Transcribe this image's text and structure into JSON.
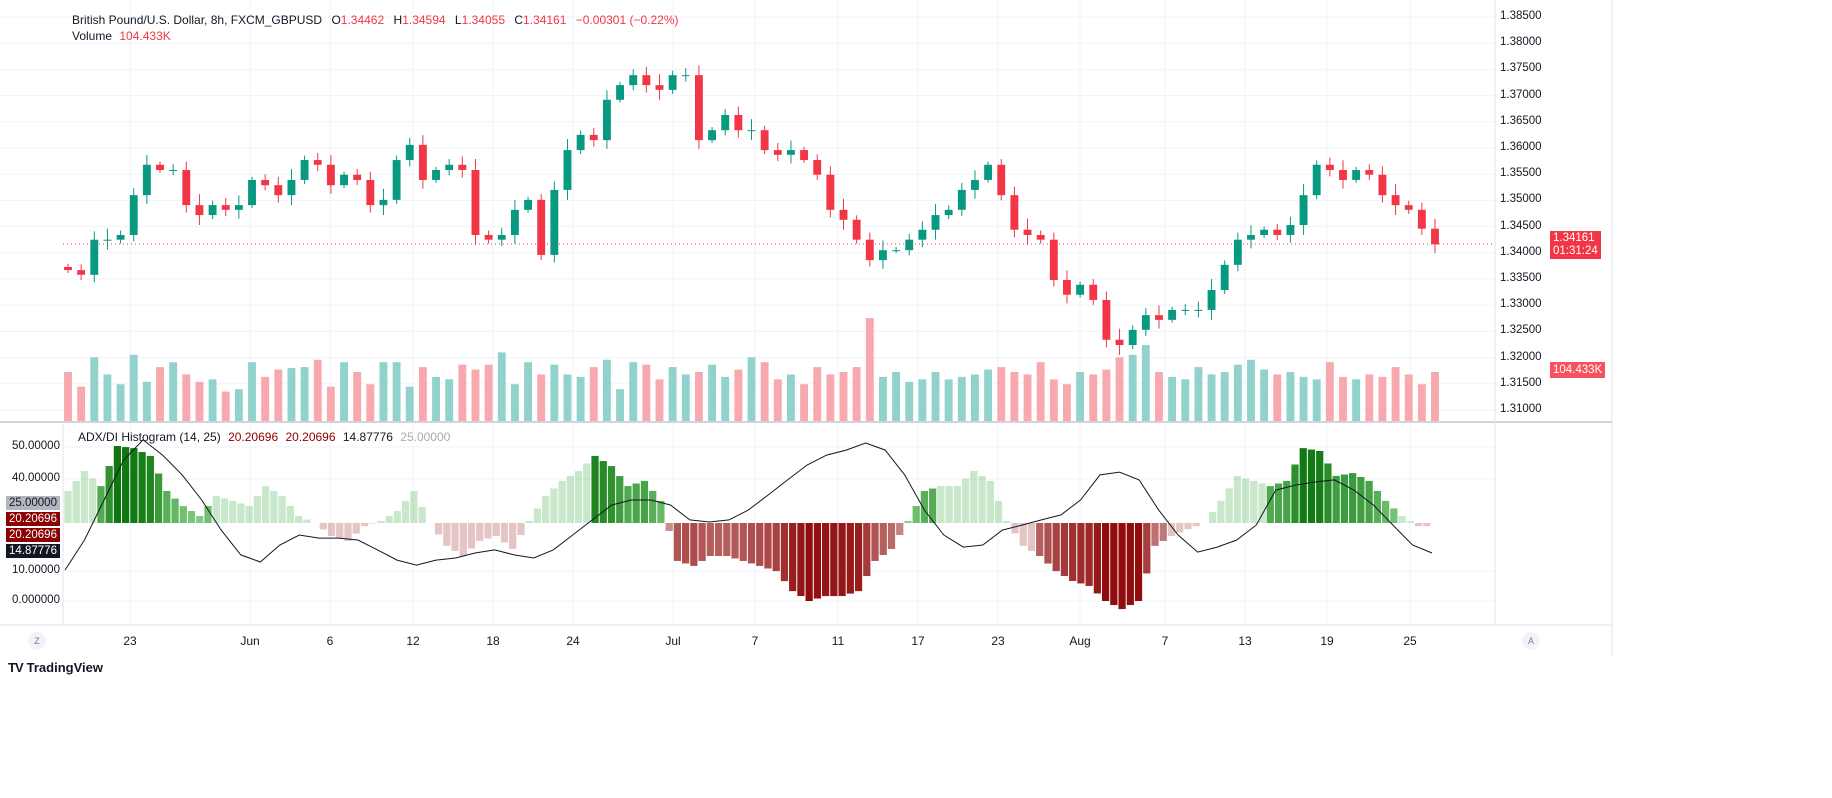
{
  "header": {
    "symbol": "British Pound/U.S. Dollar, 8h, FXCM_GBPUSD",
    "o_label": "O",
    "o": "1.34462",
    "h_label": "H",
    "h": "1.34594",
    "l_label": "L",
    "l": "1.34055",
    "c_label": "C",
    "c": "1.34161",
    "change": "−0.00301 (−0.22%)",
    "volume_label": "Volume",
    "volume": "104.433K"
  },
  "indicator": {
    "title": "ADX/DI Histogram (14, 25)",
    "v1": "20.20696",
    "v2": "20.20696",
    "v3": "14.87776",
    "v4": "25.00000"
  },
  "price_tags": {
    "last_price": "1.34161",
    "countdown": "01:31:24",
    "volume": "104.433K"
  },
  "indicator_tags": {
    "threshold": "25.00000",
    "di1": "20.20696",
    "di2": "20.20696",
    "adx": "14.87776"
  },
  "price_axis": [
    "1.38500",
    "1.38000",
    "1.37500",
    "1.37000",
    "1.36500",
    "1.36000",
    "1.35500",
    "1.35000",
    "1.34500",
    "1.34000",
    "1.33500",
    "1.33000",
    "1.32500",
    "1.32000",
    "1.31500",
    "1.31000"
  ],
  "indicator_axis": [
    "50.00000",
    "40.00000",
    "10.00000",
    "0.000000"
  ],
  "date_axis": [
    "23",
    "Jun",
    "6",
    "12",
    "18",
    "24",
    "Jul",
    "7",
    "11",
    "17",
    "23",
    "Aug",
    "7",
    "13",
    "19",
    "25"
  ],
  "buttons": {
    "timezone": "Z",
    "auto_scale": "A"
  },
  "branding": "TradingView",
  "colors": {
    "up": "#089981",
    "down": "#f23645",
    "vol_up": "#92d2cc",
    "vol_down": "#f7a9af"
  },
  "chart_data": {
    "type": "candlestick",
    "title": "British Pound/U.S. Dollar, 8h, FXCM_GBPUSD",
    "ylim": [
      1.31,
      1.385
    ],
    "closes": [
      1.3367,
      1.3358,
      1.3425,
      1.3425,
      1.3434,
      1.351,
      1.3568,
      1.3558,
      1.3558,
      1.3491,
      1.3472,
      1.3491,
      1.3482,
      1.3491,
      1.3539,
      1.3529,
      1.351,
      1.3539,
      1.3577,
      1.3568,
      1.3529,
      1.3549,
      1.3539,
      1.3491,
      1.3501,
      1.3577,
      1.3606,
      1.3539,
      1.3558,
      1.3568,
      1.3558,
      1.3434,
      1.3425,
      1.3434,
      1.3482,
      1.3501,
      1.3396,
      1.352,
      1.3596,
      1.3625,
      1.3615,
      1.3692,
      1.372,
      1.3739,
      1.372,
      1.3711,
      1.3739,
      1.3739,
      1.3615,
      1.3634,
      1.3663,
      1.3634,
      1.3634,
      1.3596,
      1.3587,
      1.3596,
      1.3577,
      1.3549,
      1.3482,
      1.3463,
      1.3425,
      1.3386,
      1.3405,
      1.3405,
      1.3425,
      1.3444,
      1.3472,
      1.3482,
      1.352,
      1.3539,
      1.3568,
      1.351,
      1.3444,
      1.3434,
      1.3425,
      1.3348,
      1.332,
      1.3339,
      1.331,
      1.3234,
      1.3224,
      1.3253,
      1.3281,
      1.3272,
      1.3291,
      1.3291,
      1.3291,
      1.3329,
      1.3377,
      1.3425,
      1.3434,
      1.3444,
      1.3434,
      1.3453,
      1.351,
      1.3568,
      1.3558,
      1.3539,
      1.3558,
      1.3549,
      1.351,
      1.3491,
      1.3482,
      1.3446,
      1.34161
    ],
    "volume_k": [
      100,
      70,
      130,
      95,
      75,
      135,
      80,
      110,
      120,
      95,
      80,
      85,
      60,
      65,
      120,
      90,
      105,
      108,
      110,
      125,
      70,
      120,
      100,
      75,
      120,
      120,
      70,
      110,
      90,
      85,
      115,
      105,
      115,
      140,
      75,
      120,
      95,
      115,
      95,
      90,
      110,
      125,
      65,
      120,
      115,
      85,
      110,
      95,
      100,
      115,
      90,
      105,
      130,
      120,
      85,
      95,
      75,
      110,
      95,
      100,
      110,
      210,
      90,
      100,
      80,
      85,
      100,
      85,
      90,
      95,
      105,
      110,
      100,
      95,
      120,
      85,
      75,
      100,
      95,
      105,
      130,
      135,
      155,
      100,
      90,
      85,
      110,
      95,
      100,
      115,
      125,
      105,
      95,
      100,
      90,
      85,
      120,
      90,
      85,
      95,
      90,
      110,
      95,
      75,
      100,
      95,
      104.433
    ],
    "adx_di_histogram": [
      12.3,
      20,
      14.2,
      29.6,
      28.8,
      25.8,
      12.3,
      6.5,
      2.7,
      10.4,
      8.5,
      6.5,
      14.2,
      10.4,
      2.7,
      0,
      -5,
      -6.9,
      -1.2,
      0.8,
      4.6,
      12.3,
      0,
      -8.8,
      -12.7,
      -6.9,
      -5,
      -10,
      0.8,
      10.4,
      16.2,
      20,
      25.8,
      21.9,
      14.2,
      16.2,
      8.5,
      -14.6,
      -16.5,
      -12.7,
      -12.7,
      -14.6,
      -16.5,
      -18.5,
      -26.2,
      -30,
      -28.1,
      -28.1,
      -26.2,
      -14.6,
      -10,
      0.8,
      12.3,
      14.2,
      14.2,
      20,
      16.2,
      0.8,
      -8.8,
      -12.7,
      -18.5,
      -22.3,
      -24.2,
      -30,
      -33.1,
      -30,
      -8.8,
      -5,
      -2.3,
      0,
      8.5,
      18.1,
      16.2,
      14.2,
      16.2,
      28.8,
      27.7,
      18.1,
      19.2,
      16.2,
      8.5,
      2.7,
      -1.2,
      -1.2
    ],
    "adx": [
      10.3,
      20,
      32.9,
      45.8,
      52.3,
      47.4,
      41,
      32.9,
      23.2,
      15.2,
      12.9,
      18.4,
      21.6,
      20.6,
      20.6,
      20,
      16.8,
      13.5,
      11.9,
      13.5,
      14.2,
      15.8,
      16.8,
      15.2,
      14.2,
      16.8,
      21.6,
      26.5,
      31.3,
      32.9,
      32.9,
      31.3,
      26.5,
      25.8,
      26.5,
      29.7,
      34.5,
      39.4,
      44.2,
      47.4,
      49,
      51.3,
      49,
      41,
      29.7,
      21.6,
      17.7,
      18.4,
      23.2,
      24.8,
      26.5,
      28.1,
      32.9,
      41,
      41.9,
      39.4,
      29.7,
      21.6,
      16.1,
      17.7,
      20,
      24.8,
      36.1,
      37.7,
      38.7,
      39.4,
      36.1,
      31.3,
      24.8,
      18.4,
      15.8
    ],
    "threshold": 25
  }
}
